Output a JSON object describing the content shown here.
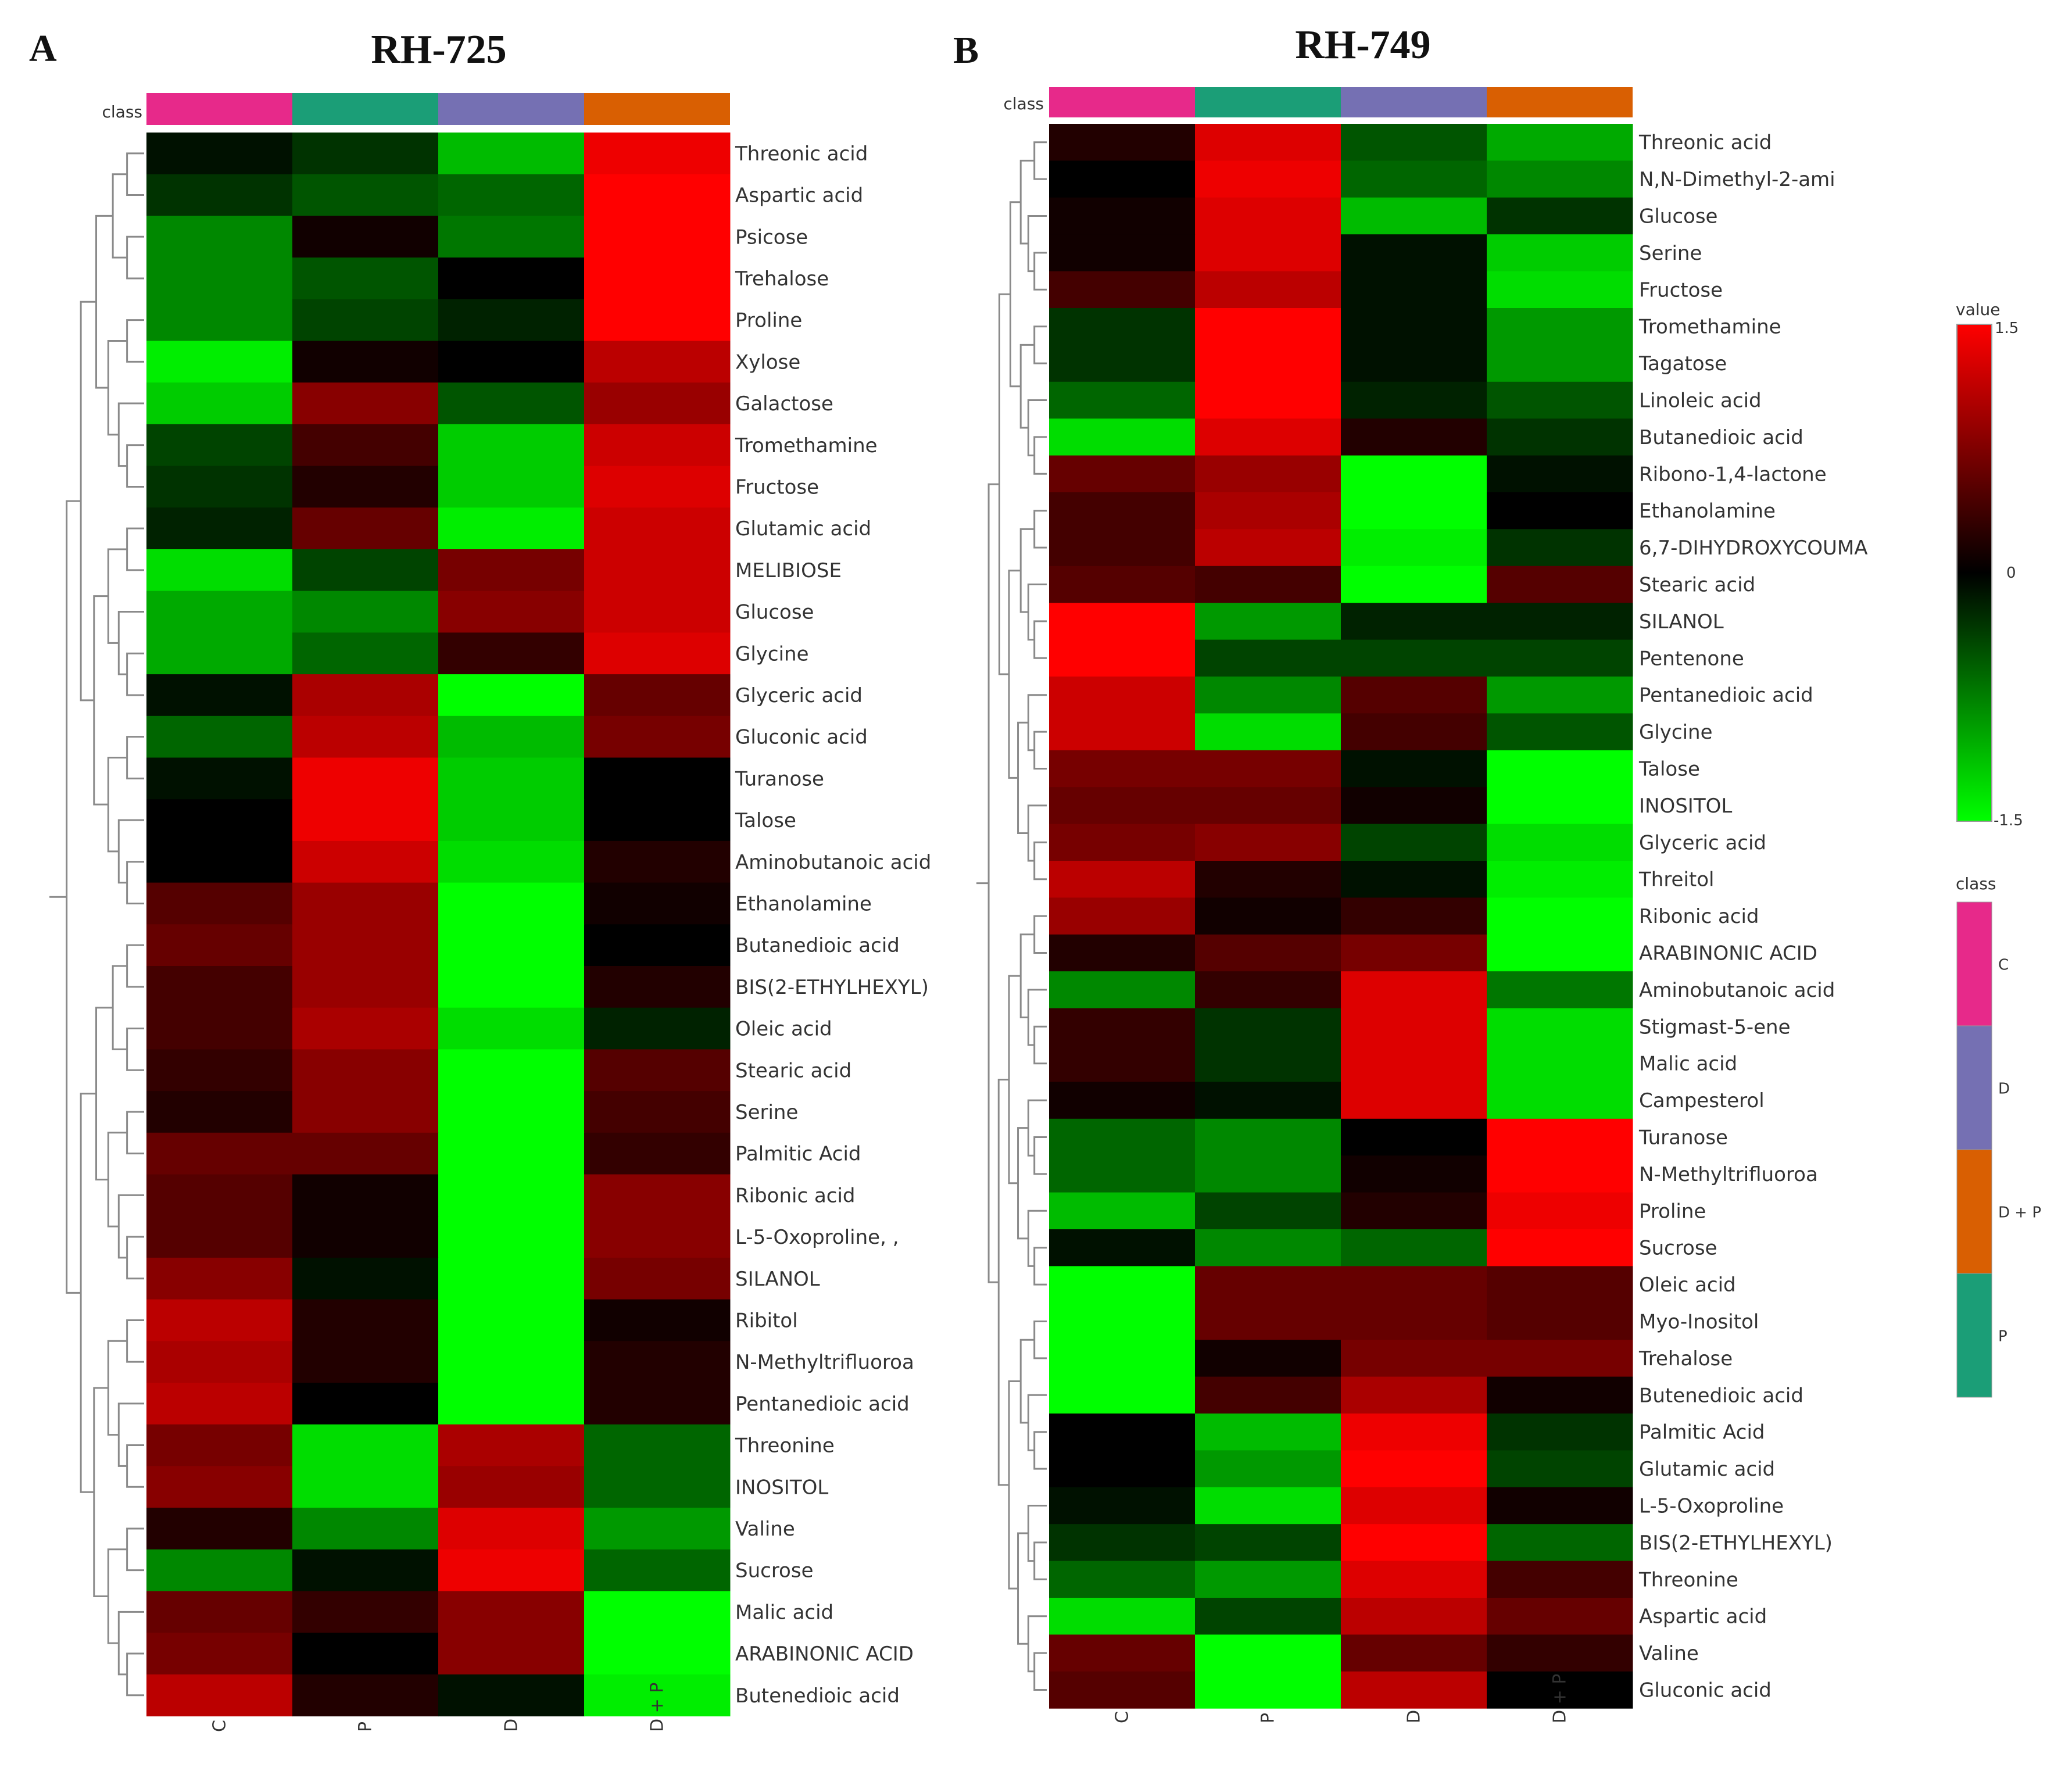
{
  "panels": [
    {
      "letter": "A",
      "title": "RH-725",
      "class_label": "class",
      "columns": [
        "C",
        "P",
        "D",
        "D + P"
      ],
      "rows": [
        "Threonic acid",
        "Aspartic acid",
        "Psicose",
        "Trehalose",
        "Proline",
        "Xylose",
        "Galactose",
        "Tromethamine",
        "Fructose",
        "Glutamic acid",
        "MELIBIOSE",
        "Glucose",
        "Glycine",
        "Glyceric acid",
        "Gluconic acid",
        "Turanose",
        "Talose",
        "Aminobutanoic acid",
        "Ethanolamine",
        "Butanedioic acid",
        "BIS(2-ETHYLHEXYL)",
        "Oleic acid",
        "Stearic acid",
        "Serine",
        "Palmitic Acid",
        "Ribonic acid",
        "L-5-Oxoproline, ,",
        "SILANOL",
        "Ribitol",
        "N-Methyltrifluoroa",
        "Pentanedioic acid",
        "Threonine",
        "INOSITOL",
        "Valine",
        "Sucrose",
        "Malic acid",
        "ARABINONIC ACID",
        "Butenedioic acid"
      ]
    },
    {
      "letter": "B",
      "title": "RH-749",
      "class_label": "class",
      "columns": [
        "C",
        "P",
        "D",
        "D + P"
      ],
      "rows": [
        "Threonic acid",
        "N,N-Dimethyl-2-ami",
        "Glucose",
        "Serine",
        "Fructose",
        "Tromethamine",
        "Tagatose",
        "Linoleic acid",
        "Butanedioic acid",
        "Ribono-1,4-lactone",
        "Ethanolamine",
        "6,7-DIHYDROXYCOUMA",
        "Stearic acid",
        "SILANOL",
        "Pentenone",
        "Pentanedioic acid",
        "Glycine",
        "Talose",
        "INOSITOL",
        "Glyceric acid",
        "Threitol",
        "Ribonic acid",
        "ARABINONIC ACID",
        "Aminobutanoic acid",
        "Stigmast-5-ene",
        "Malic acid",
        "Campesterol",
        "Turanose",
        "N-Methyltrifluoroa",
        "Proline",
        "Sucrose",
        "Oleic acid",
        "Myo-Inositol",
        "Trehalose",
        "Butenedioic acid",
        "Palmitic Acid",
        "Glutamic acid",
        "L-5-Oxoproline",
        "BIS(2-ETHYLHEXYL)",
        "Threonine",
        "Aspartic acid",
        "Valine",
        "Gluconic acid"
      ]
    }
  ],
  "legend": {
    "value_title": "value",
    "value_max": "1.5",
    "value_mid": "0",
    "value_min": "-1.5",
    "class_title": "class",
    "class_items": [
      "C",
      "D",
      "D + P",
      "P"
    ]
  },
  "colors": {
    "high": "#ff0000",
    "mid": "#000000",
    "low": "#00ff00",
    "class": {
      "C": "#e7298a",
      "P": "#1b9e77",
      "D": "#7570b3",
      "D + P": "#d95f02"
    },
    "dendrogram": "#8a8a8a"
  },
  "chart_data": [
    {
      "type": "heatmap",
      "title": "RH-725",
      "x": [
        "C",
        "P",
        "D",
        "D + P"
      ],
      "y": [
        "Threonic acid",
        "Aspartic acid",
        "Psicose",
        "Trehalose",
        "Proline",
        "Xylose",
        "Galactose",
        "Tromethamine",
        "Fructose",
        "Glutamic acid",
        "MELIBIOSE",
        "Glucose",
        "Glycine",
        "Glyceric acid",
        "Gluconic acid",
        "Turanose",
        "Talose",
        "Aminobutanoic acid",
        "Ethanolamine",
        "Butanedioic acid",
        "BIS(2-ETHYLHEXYL)",
        "Oleic acid",
        "Stearic acid",
        "Serine",
        "Palmitic Acid",
        "Ribonic acid",
        "L-5-Oxoproline, ,",
        "SILANOL",
        "Ribitol",
        "N-Methyltrifluoroa",
        "Pentanedioic acid",
        "Threonine",
        "INOSITOL",
        "Valine",
        "Sucrose",
        "Malic acid",
        "ARABINONIC ACID",
        "Butenedioic acid"
      ],
      "values": [
        [
          -0.1,
          -0.3,
          -1.1,
          1.4
        ],
        [
          -0.3,
          -0.5,
          -0.6,
          1.5
        ],
        [
          -0.8,
          0.1,
          -0.7,
          1.5
        ],
        [
          -0.8,
          -0.5,
          0.0,
          1.5
        ],
        [
          -0.8,
          -0.4,
          -0.2,
          1.5
        ],
        [
          -1.4,
          0.1,
          0.0,
          1.1
        ],
        [
          -1.2,
          0.8,
          -0.5,
          0.9
        ],
        [
          -0.4,
          0.4,
          -1.2,
          1.2
        ],
        [
          -0.3,
          0.2,
          -1.2,
          1.3
        ],
        [
          -0.2,
          0.6,
          -1.4,
          1.2
        ],
        [
          -1.3,
          -0.4,
          0.7,
          1.2
        ],
        [
          -1.0,
          -0.8,
          0.8,
          1.2
        ],
        [
          -1.0,
          -0.6,
          0.3,
          1.3
        ],
        [
          -0.1,
          1.0,
          -1.5,
          0.6
        ],
        [
          -0.6,
          1.1,
          -1.1,
          0.7
        ],
        [
          -0.1,
          1.4,
          -1.2,
          0.0
        ],
        [
          0.0,
          1.4,
          -1.2,
          0.0
        ],
        [
          0.0,
          1.2,
          -1.3,
          0.2
        ],
        [
          0.5,
          0.9,
          -1.5,
          0.1
        ],
        [
          0.6,
          0.9,
          -1.5,
          0.0
        ],
        [
          0.4,
          0.9,
          -1.5,
          0.2
        ],
        [
          0.4,
          1.0,
          -1.3,
          -0.2
        ],
        [
          0.3,
          0.8,
          -1.5,
          0.5
        ],
        [
          0.2,
          0.8,
          -1.5,
          0.4
        ],
        [
          0.6,
          0.6,
          -1.5,
          0.3
        ],
        [
          0.5,
          0.1,
          -1.5,
          0.8
        ],
        [
          0.5,
          0.1,
          -1.5,
          0.8
        ],
        [
          0.8,
          -0.1,
          -1.5,
          0.7
        ],
        [
          1.1,
          0.2,
          -1.5,
          0.1
        ],
        [
          1.0,
          0.2,
          -1.5,
          0.2
        ],
        [
          1.1,
          0.0,
          -1.5,
          0.2
        ],
        [
          0.7,
          -1.3,
          1.0,
          -0.6
        ],
        [
          0.8,
          -1.3,
          0.9,
          -0.6
        ],
        [
          0.2,
          -0.8,
          1.3,
          -0.9
        ],
        [
          -0.8,
          -0.1,
          1.4,
          -0.6
        ],
        [
          0.6,
          0.3,
          0.8,
          -1.5
        ],
        [
          0.7,
          0.0,
          0.8,
          -1.5
        ],
        [
          1.1,
          0.2,
          -0.1,
          -1.4
        ]
      ],
      "value_range": [
        -1.5,
        1.5
      ]
    },
    {
      "type": "heatmap",
      "title": "RH-749",
      "x": [
        "C",
        "P",
        "D",
        "D + P"
      ],
      "y": [
        "Threonic acid",
        "N,N-Dimethyl-2-ami",
        "Glucose",
        "Serine",
        "Fructose",
        "Tromethamine",
        "Tagatose",
        "Linoleic acid",
        "Butanedioic acid",
        "Ribono-1,4-lactone",
        "Ethanolamine",
        "6,7-DIHYDROXYCOUMA",
        "Stearic acid",
        "SILANOL",
        "Pentenone",
        "Pentanedioic acid",
        "Glycine",
        "Talose",
        "INOSITOL",
        "Glyceric acid",
        "Threitol",
        "Ribonic acid",
        "ARABINONIC ACID",
        "Aminobutanoic acid",
        "Stigmast-5-ene",
        "Malic acid",
        "Campesterol",
        "Turanose",
        "N-Methyltrifluoroa",
        "Proline",
        "Sucrose",
        "Oleic acid",
        "Myo-Inositol",
        "Trehalose",
        "Butenedioic acid",
        "Palmitic Acid",
        "Glutamic acid",
        "L-5-Oxoproline",
        "BIS(2-ETHYLHEXYL)",
        "Threonine",
        "Aspartic acid",
        "Valine",
        "Gluconic acid"
      ],
      "values": [
        [
          0.2,
          1.3,
          -0.5,
          -1.0
        ],
        [
          0.0,
          1.4,
          -0.6,
          -0.8
        ],
        [
          0.1,
          1.3,
          -1.1,
          -0.3
        ],
        [
          0.1,
          1.3,
          -0.1,
          -1.2
        ],
        [
          0.4,
          1.1,
          -0.1,
          -1.3
        ],
        [
          -0.3,
          1.5,
          -0.1,
          -0.9
        ],
        [
          -0.3,
          1.5,
          -0.1,
          -0.9
        ],
        [
          -0.6,
          1.5,
          -0.2,
          -0.5
        ],
        [
          -1.3,
          1.3,
          0.2,
          -0.3
        ],
        [
          0.6,
          0.9,
          -1.5,
          -0.1
        ],
        [
          0.4,
          1.0,
          -1.5,
          0.0
        ],
        [
          0.4,
          1.1,
          -1.4,
          -0.3
        ],
        [
          0.5,
          0.4,
          -1.5,
          0.5
        ],
        [
          1.5,
          -0.9,
          -0.2,
          -0.2
        ],
        [
          1.5,
          -0.4,
          -0.4,
          -0.4
        ],
        [
          1.2,
          -0.8,
          0.5,
          -0.9
        ],
        [
          1.2,
          -1.3,
          0.4,
          -0.5
        ],
        [
          0.7,
          0.7,
          -0.1,
          -1.5
        ],
        [
          0.6,
          0.6,
          0.1,
          -1.5
        ],
        [
          0.7,
          0.8,
          -0.4,
          -1.3
        ],
        [
          1.1,
          0.2,
          -0.1,
          -1.4
        ],
        [
          0.9,
          0.1,
          0.3,
          -1.5
        ],
        [
          0.2,
          0.5,
          0.7,
          -1.5
        ],
        [
          -0.8,
          0.3,
          1.3,
          -0.7
        ],
        [
          0.3,
          -0.3,
          1.3,
          -1.3
        ],
        [
          0.3,
          -0.3,
          1.3,
          -1.3
        ],
        [
          0.1,
          -0.1,
          1.3,
          -1.3
        ],
        [
          -0.6,
          -0.8,
          0.0,
          1.5
        ],
        [
          -0.6,
          -0.8,
          0.1,
          1.5
        ],
        [
          -1.1,
          -0.4,
          0.2,
          1.4
        ],
        [
          -0.1,
          -0.8,
          -0.6,
          1.5
        ],
        [
          -1.5,
          0.6,
          0.6,
          0.5
        ],
        [
          -1.5,
          0.6,
          0.6,
          0.5
        ],
        [
          -1.5,
          0.1,
          0.7,
          0.7
        ],
        [
          -1.5,
          0.4,
          1.0,
          0.1
        ],
        [
          0.0,
          -1.1,
          1.4,
          -0.3
        ],
        [
          0.0,
          -0.9,
          1.5,
          -0.4
        ],
        [
          -0.1,
          -1.3,
          1.3,
          0.1
        ],
        [
          -0.3,
          -0.4,
          1.5,
          -0.6
        ],
        [
          -0.6,
          -0.9,
          1.3,
          0.4
        ],
        [
          -1.3,
          -0.4,
          1.1,
          0.6
        ],
        [
          0.6,
          -1.5,
          0.6,
          0.3
        ],
        [
          0.5,
          -1.5,
          1.1,
          0.0
        ]
      ],
      "value_range": [
        -1.5,
        1.5
      ]
    }
  ]
}
